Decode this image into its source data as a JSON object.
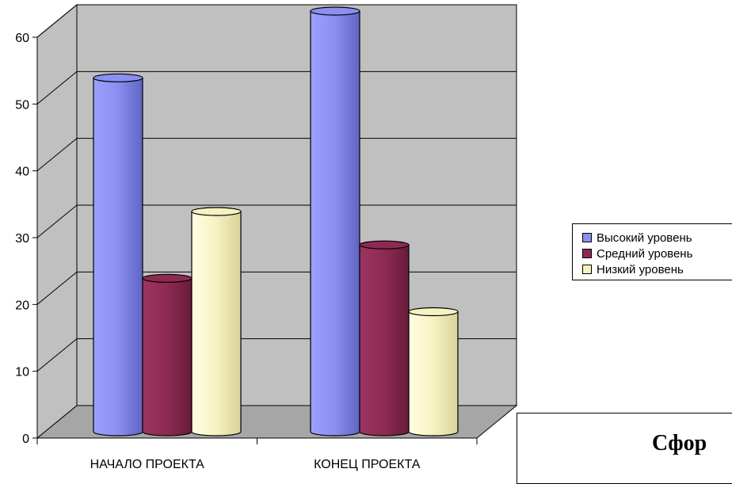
{
  "chart_data": {
    "type": "bar",
    "categories": [
      "НАЧАЛО ПРОЕКТА",
      "КОНЕЦ ПРОЕКТА"
    ],
    "series": [
      {
        "name": "Высокий уровень",
        "values": [
          50,
          60
        ],
        "color": "#8a8ff0"
      },
      {
        "name": "Средний уровень",
        "values": [
          20,
          25
        ],
        "color": "#8e2a52"
      },
      {
        "name": "Низкий уровень",
        "values": [
          30,
          15
        ],
        "color": "#f6f3c2"
      }
    ],
    "yticks": [
      0,
      10,
      20,
      30,
      40,
      50,
      60
    ],
    "ylim": [
      0,
      60
    ],
    "grid": true,
    "legend_position": "right",
    "wall_color": "#c0c0c0",
    "floor_color": "#a6a6a6"
  },
  "overlay_text": "Сфор"
}
